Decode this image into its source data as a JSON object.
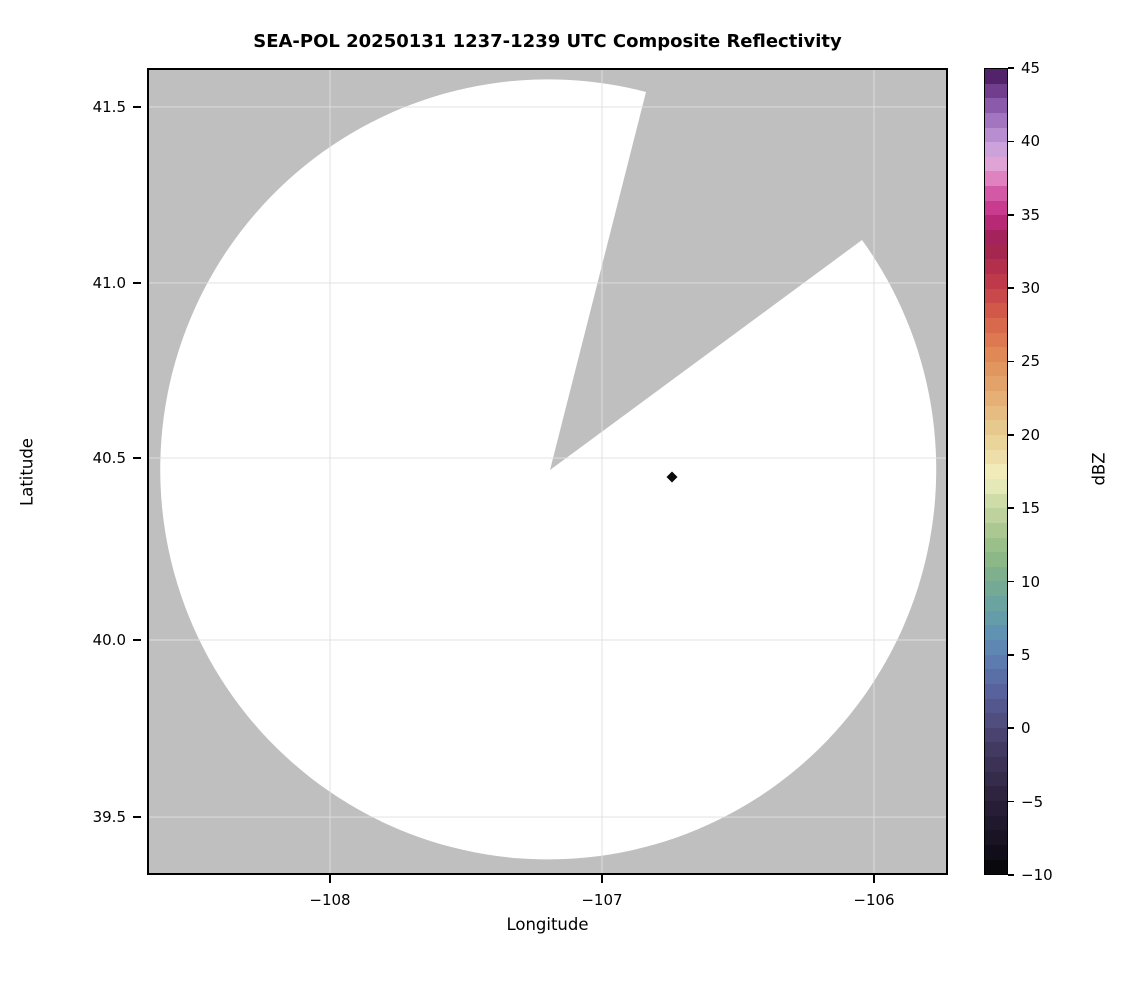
{
  "figure": {
    "title": "SEA-POL 20250131 1237-1239 UTC Composite Reflectivity",
    "xlabel": "Longitude",
    "ylabel": "Latitude",
    "x_ticks": [
      {
        "label": "−108",
        "f": 0.2285
      },
      {
        "label": "−107",
        "f": 0.568
      },
      {
        "label": "−106",
        "f": 0.9076
      }
    ],
    "y_ticks": [
      {
        "label": "41.5",
        "f": 0.0483
      },
      {
        "label": "41.0",
        "f": 0.2664
      },
      {
        "label": "40.5",
        "f": 0.4833
      },
      {
        "label": "40.0",
        "f": 0.7088
      },
      {
        "label": "39.5",
        "f": 0.9282
      }
    ],
    "colors": {
      "masked_gray": "#bfbfbf",
      "coverage_white": "#ffffff",
      "grid": "rgba(222,222,222,0.65)",
      "frame": "#000000",
      "echo_marker": "#0a0a0a"
    }
  },
  "colorbar": {
    "label": "dBZ",
    "min": -10,
    "max": 45,
    "band_step_dbz": 1,
    "ticks": [
      {
        "label": "45",
        "v": 45
      },
      {
        "label": "40",
        "v": 40
      },
      {
        "label": "35",
        "v": 35
      },
      {
        "label": "30",
        "v": 30
      },
      {
        "label": "25",
        "v": 25
      },
      {
        "label": "20",
        "v": 20
      },
      {
        "label": "15",
        "v": 15
      },
      {
        "label": "10",
        "v": 10
      },
      {
        "label": "5",
        "v": 5
      },
      {
        "label": "0",
        "v": 0
      },
      {
        "label": "−5",
        "v": -5
      },
      {
        "label": "−10",
        "v": -10
      }
    ],
    "anchors": [
      {
        "v": -10,
        "c": "#050505"
      },
      {
        "v": -8,
        "c": "#161120"
      },
      {
        "v": -6,
        "c": "#231a31"
      },
      {
        "v": -4,
        "c": "#312744"
      },
      {
        "v": -2,
        "c": "#3f355b"
      },
      {
        "v": 0,
        "c": "#4e4877"
      },
      {
        "v": 2,
        "c": "#565c96"
      },
      {
        "v": 4,
        "c": "#5c75ad"
      },
      {
        "v": 6,
        "c": "#5e8eb5"
      },
      {
        "v": 8,
        "c": "#67a0a5"
      },
      {
        "v": 10,
        "c": "#77ac90"
      },
      {
        "v": 12,
        "c": "#93ba84"
      },
      {
        "v": 14,
        "c": "#b4cc96"
      },
      {
        "v": 16,
        "c": "#d7e2ae"
      },
      {
        "v": 17,
        "c": "#f2f0c2"
      },
      {
        "v": 18,
        "c": "#f0e3b0"
      },
      {
        "v": 20,
        "c": "#e9cf92"
      },
      {
        "v": 22,
        "c": "#e6b67c"
      },
      {
        "v": 24,
        "c": "#e29b63"
      },
      {
        "v": 26,
        "c": "#df8152"
      },
      {
        "v": 28,
        "c": "#d7614a"
      },
      {
        "v": 30,
        "c": "#c43f49"
      },
      {
        "v": 32,
        "c": "#ac2b4c"
      },
      {
        "v": 33,
        "c": "#9d2151"
      },
      {
        "v": 34,
        "c": "#ad2468"
      },
      {
        "v": 35,
        "c": "#c22d82"
      },
      {
        "v": 36,
        "c": "#cd499a"
      },
      {
        "v": 37,
        "c": "#d866af"
      },
      {
        "v": 38,
        "c": "#e79ed0"
      },
      {
        "v": 39,
        "c": "#d7a7db"
      },
      {
        "v": 40,
        "c": "#c29ad9"
      },
      {
        "v": 42,
        "c": "#9968b8"
      },
      {
        "v": 44,
        "c": "#643080"
      },
      {
        "v": 45,
        "c": "#401455"
      }
    ]
  },
  "chart_data": {
    "type": "heatmap",
    "title": "SEA-POL 20250131 1237-1239 UTC Composite Reflectivity",
    "xlabel": "Longitude",
    "ylabel": "Latitude",
    "xlim": [
      -108.67,
      -105.73
    ],
    "ylim": [
      39.34,
      41.61
    ],
    "x_ticks": [
      -108,
      -107,
      -106
    ],
    "y_ticks": [
      39.5,
      40.0,
      40.5,
      41.0,
      41.5
    ],
    "grid": true,
    "legend_position": "right colorbar",
    "colorbar": {
      "label": "dBZ",
      "range": [
        -10,
        45
      ],
      "tick_step": 5,
      "style": "discrete bands, ChaseSpectral-like: black → dark violet → slate blue → steel blue → teal → sea green → pale yellow → tan → orange → red → crimson → magenta → pink → lavender → purple → dark purple"
    },
    "radar": {
      "name": "SEA-POL",
      "center": {
        "lon": -107.19,
        "lat": 40.48
      },
      "coverage_radius": {
        "deg_lon": 1.43,
        "deg_lat": 1.11
      },
      "blocked_sector_azimuth_deg": [
        14,
        54
      ],
      "rendering": "coverage area white (no significant echo); out-of-range and blocked sector masked gray"
    },
    "echoes": [
      {
        "lon": -106.74,
        "lat": 40.45,
        "approx_dbz": -10,
        "marker": "small black diamond"
      }
    ]
  }
}
